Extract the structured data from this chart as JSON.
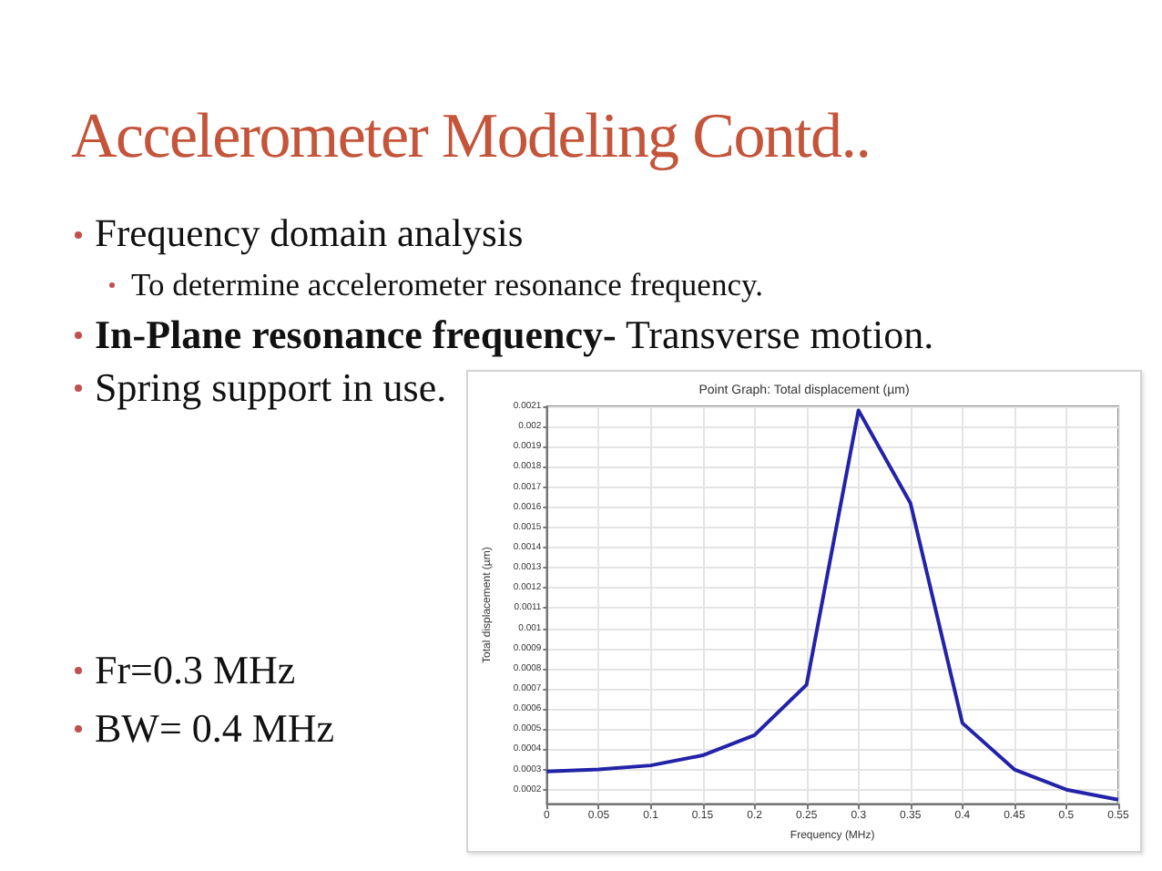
{
  "chart_data": {
    "type": "line",
    "title": "Accelerometer Modeling Contd..",
    "subtitle": "Point Graph: Total displacement (µm)",
    "xlabel": "Frequency (MHz)",
    "ylabel": "Total displacement (µm)",
    "annotations": [
      "Frequency domain analysis",
      "To determine accelerometer resonance frequency.",
      "In-Plane resonance frequency- Transverse motion.",
      "Spring support in use.",
      "Fr=0.3 MHz",
      "BW= 0.4 MHz"
    ],
    "x": [
      0,
      0.05,
      0.1,
      0.15,
      0.2,
      0.25,
      0.3,
      0.35,
      0.4,
      0.45,
      0.5,
      0.55
    ],
    "series": [
      {
        "color": "#2323a8",
        "values": [
          0.00029,
          0.0003,
          0.00032,
          0.00037,
          0.00047,
          0.00072,
          0.00208,
          0.00162,
          0.00053,
          0.0003,
          0.0002,
          0.00015
        ]
      }
    ],
    "xlim": [
      0,
      0.55
    ],
    "ylim": [
      0.00013,
      0.0021
    ],
    "xticks": [
      0,
      0.05,
      0.1,
      0.15,
      0.2,
      0.25,
      0.3,
      0.35,
      0.4,
      0.45,
      0.5,
      0.55
    ],
    "yticks": [
      0.0002,
      0.0003,
      0.0004,
      0.0005,
      0.0006,
      0.0007,
      0.0008,
      0.0009,
      0.001,
      0.0011,
      0.0012,
      0.0013,
      0.0014,
      0.0015,
      0.0016,
      0.0017,
      0.0018,
      0.0019,
      0.002,
      0.0021
    ],
    "grid": true,
    "marker": "none",
    "line_style": "solid"
  }
}
